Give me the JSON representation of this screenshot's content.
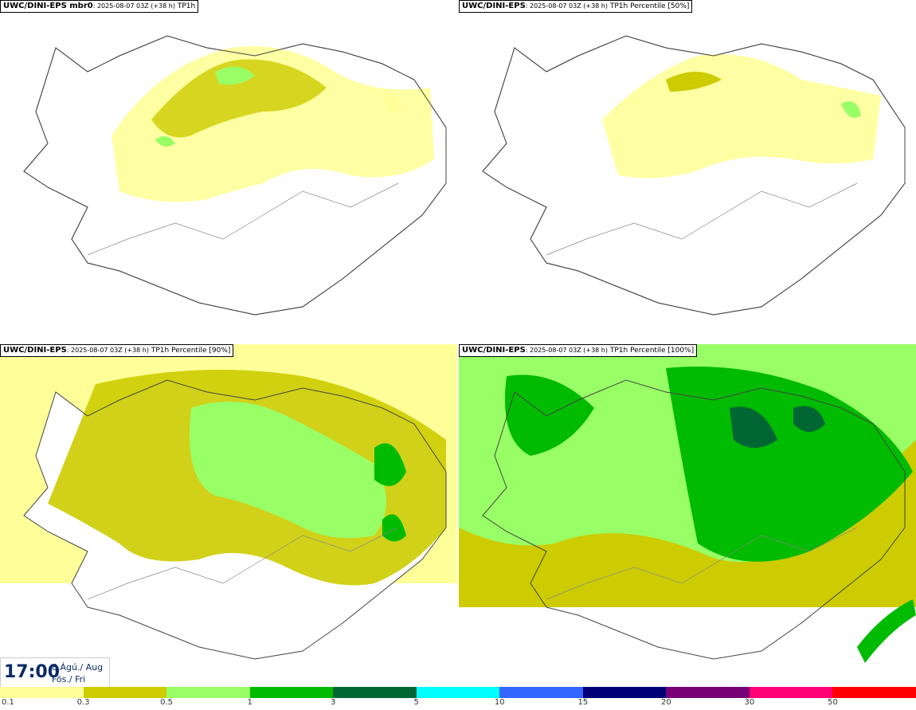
{
  "panels": [
    {
      "source": "UWC/DINI-EPS",
      "member": "mbr0",
      "run": "2025-08-07 03Z (+38 h)",
      "field": "TP1h"
    },
    {
      "source": "UWC/DINI-EPS",
      "member": "",
      "run": "2025-08-07 03Z (+38 h)",
      "field": "TP1h Percentile [50%]"
    },
    {
      "source": "UWC/DINI-EPS",
      "member": "",
      "run": "2025-08-07 03Z (+38 h)",
      "field": "TP1h Percentile [90%]"
    },
    {
      "source": "UWC/DINI-EPS",
      "member": "",
      "run": "2025-08-07 03Z (+38 h)",
      "field": "TP1h Percentile [100%]"
    }
  ],
  "valid_time": {
    "time": "17:00",
    "date": "8.Ágú./ Aug",
    "weekday": "Fös./ Fri"
  },
  "legend": {
    "labels": [
      "0.1",
      "0.3",
      "0.5",
      "1",
      "3",
      "5",
      "10",
      "15",
      "20",
      "30",
      "50"
    ],
    "colors": [
      "#ffff99",
      "#cccc00",
      "#99ff66",
      "#00bb00",
      "#006633",
      "#00ffff",
      "#3366ff",
      "#000077",
      "#770077",
      "#ff0077",
      "#ff0000"
    ]
  },
  "map_colors": {
    "land_outline": "#555555",
    "road": "#888888"
  }
}
